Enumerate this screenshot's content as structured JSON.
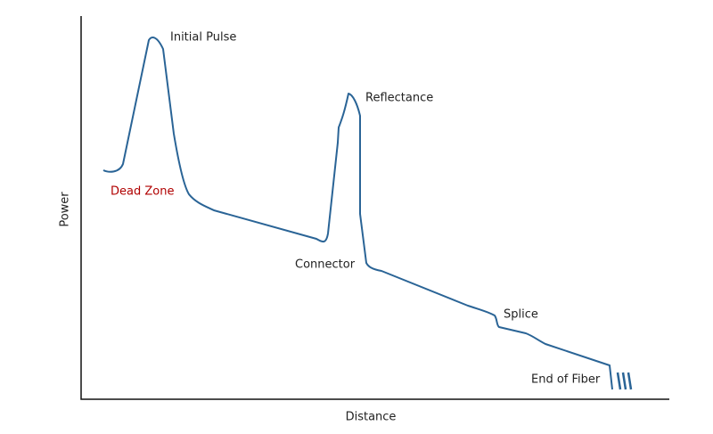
{
  "axes": {
    "y_label": "Power",
    "x_label": "Distance"
  },
  "annotations": {
    "initial_pulse": "Initial Pulse",
    "dead_zone": "Dead Zone",
    "reflectance": "Reflectance",
    "connector": "Connector",
    "splice": "Splice",
    "end_of_fiber": "End of Fiber"
  }
}
